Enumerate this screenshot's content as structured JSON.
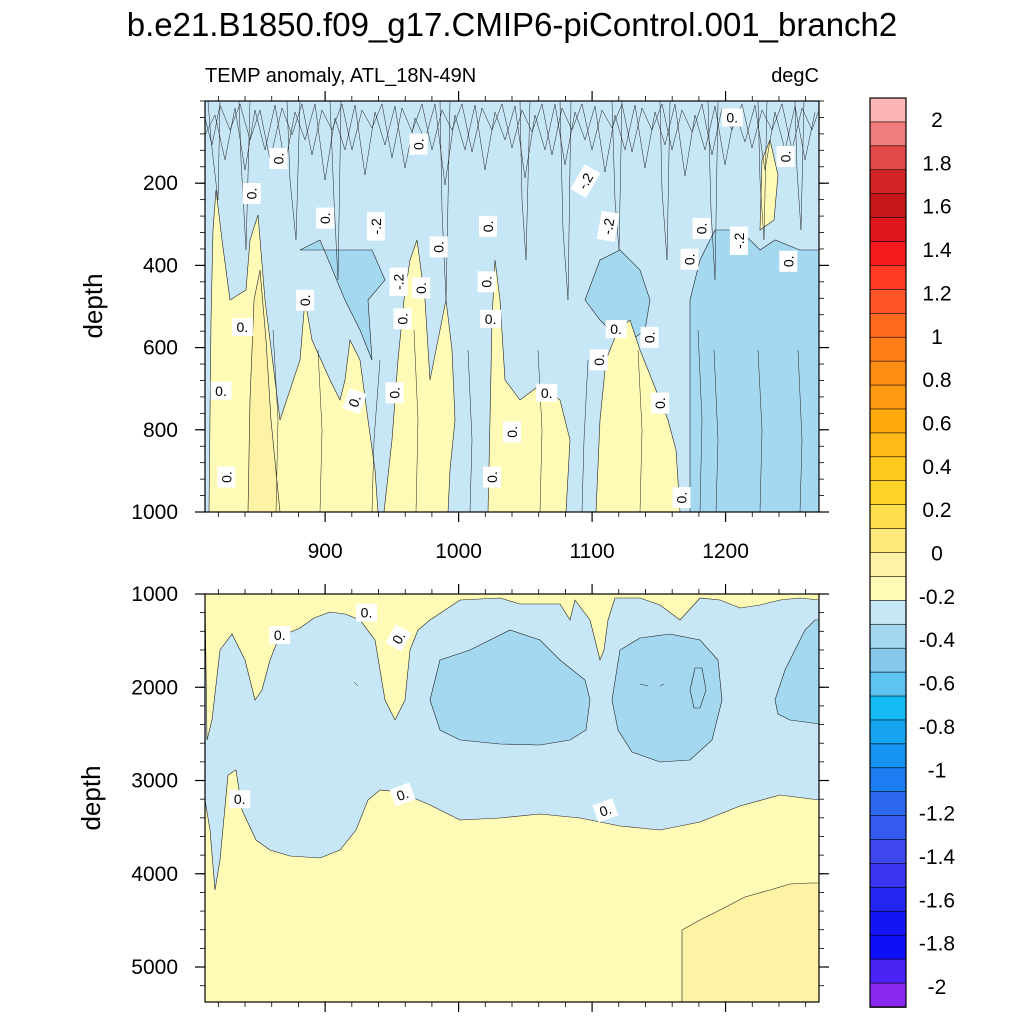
{
  "chart_data": {
    "type": "heatmap",
    "title": "b.e21.B1850.f09_g17.CMIP6-piControl.001_branch2",
    "panels": [
      {
        "name": "upper-ocean",
        "subtitle_left": "TEMP anomaly, ATL_18N-49N",
        "subtitle_right": "degC",
        "ylabel": "depth",
        "xlim": [
          810,
          1270
        ],
        "ylim": [
          0,
          1000
        ],
        "x_ticks": [
          "900",
          "1000",
          "1100",
          "1200"
        ],
        "y_ticks": [
          "200",
          "400",
          "600",
          "800",
          "1000"
        ],
        "contour_labels": [
          {
            "text": "0.",
            "x": 1205,
            "y": 40,
            "rot": 0
          },
          {
            "text": "0.",
            "x": 970,
            "y": 105,
            "rot": -90
          },
          {
            "text": "0.",
            "x": 865,
            "y": 140,
            "rot": -90
          },
          {
            "text": "0.",
            "x": 1245,
            "y": 135,
            "rot": -90
          },
          {
            "text": "-.2",
            "x": 1095,
            "y": 195,
            "rot": -60
          },
          {
            "text": "0.",
            "x": 845,
            "y": 225,
            "rot": -90
          },
          {
            "text": "0.",
            "x": 900,
            "y": 285,
            "rot": -90
          },
          {
            "text": "-.2",
            "x": 938,
            "y": 305,
            "rot": -90
          },
          {
            "text": "0.",
            "x": 1022,
            "y": 305,
            "rot": -90
          },
          {
            "text": "-.2",
            "x": 1112,
            "y": 305,
            "rot": -80
          },
          {
            "text": "0.",
            "x": 1182,
            "y": 310,
            "rot": -90
          },
          {
            "text": "-.2",
            "x": 1210,
            "y": 340,
            "rot": -90
          },
          {
            "text": "0.",
            "x": 985,
            "y": 355,
            "rot": -90
          },
          {
            "text": "0.",
            "x": 1173,
            "y": 385,
            "rot": -90
          },
          {
            "text": "0.",
            "x": 1247,
            "y": 390,
            "rot": -90
          },
          {
            "text": "-.2",
            "x": 955,
            "y": 440,
            "rot": -90
          },
          {
            "text": "0.",
            "x": 1021,
            "y": 440,
            "rot": -90
          },
          {
            "text": "0.",
            "x": 972,
            "y": 455,
            "rot": -90
          },
          {
            "text": "0.",
            "x": 885,
            "y": 485,
            "rot": -90
          },
          {
            "text": "0.",
            "x": 1024,
            "y": 530,
            "rot": 0
          },
          {
            "text": "0.",
            "x": 958,
            "y": 530,
            "rot": -90
          },
          {
            "text": "0.",
            "x": 838,
            "y": 550,
            "rot": 0
          },
          {
            "text": "0.",
            "x": 1118,
            "y": 555,
            "rot": 0
          },
          {
            "text": "0.",
            "x": 1143,
            "y": 575,
            "rot": -90
          },
          {
            "text": "0.",
            "x": 1105,
            "y": 630,
            "rot": -90
          },
          {
            "text": "0.",
            "x": 822,
            "y": 705,
            "rot": 0
          },
          {
            "text": "0.",
            "x": 952,
            "y": 710,
            "rot": -90
          },
          {
            "text": "0.",
            "x": 1066,
            "y": 710,
            "rot": 0
          },
          {
            "text": "0.",
            "x": 922,
            "y": 730,
            "rot": -70
          },
          {
            "text": "0.",
            "x": 1151,
            "y": 735,
            "rot": -90
          },
          {
            "text": "0.",
            "x": 1040,
            "y": 805,
            "rot": -90
          },
          {
            "text": "0.",
            "x": 826,
            "y": 915,
            "rot": -90
          },
          {
            "text": "0.",
            "x": 1025,
            "y": 915,
            "rot": -90
          },
          {
            "text": "0.",
            "x": 1167,
            "y": 965,
            "rot": -90
          }
        ]
      },
      {
        "name": "deep-ocean",
        "ylabel": "depth",
        "xlim": [
          810,
          1270
        ],
        "ylim": [
          1000,
          5375
        ],
        "y_ticks": [
          "1000",
          "2000",
          "3000",
          "4000",
          "5000"
        ],
        "contour_labels": [
          {
            "text": "0.",
            "x": 931,
            "y": 1200,
            "rot": 0
          },
          {
            "text": "0.",
            "x": 866,
            "y": 1440,
            "rot": 0
          },
          {
            "text": "0.",
            "x": 955,
            "y": 1470,
            "rot": -60
          },
          {
            "text": "0.",
            "x": 836,
            "y": 3200,
            "rot": 0
          },
          {
            "text": "0.",
            "x": 958,
            "y": 3150,
            "rot": -20
          },
          {
            "text": "0.",
            "x": 1110,
            "y": 3320,
            "rot": -20
          }
        ]
      }
    ],
    "colorbar": {
      "labels": [
        "2",
        "1.8",
        "1.6",
        "1.4",
        "1.2",
        "1",
        "0.8",
        "0.6",
        "0.4",
        "0.2",
        "0",
        "-0.2",
        "-0.4",
        "-0.6",
        "-0.8",
        "-1",
        "-1.2",
        "-1.4",
        "-1.6",
        "-1.8",
        "-2"
      ],
      "colors": [
        "#fbb5b5",
        "#f07c7c",
        "#e4494a",
        "#d22426",
        "#c8171b",
        "#e0171c",
        "#f51a1e",
        "#ff3a24",
        "#ff5526",
        "#ff6a1f",
        "#ff7d17",
        "#ff8d14",
        "#ff9b10",
        "#ffa90e",
        "#ffba18",
        "#ffc81f",
        "#ffd428",
        "#ffe04c",
        "#fde97a",
        "#fef3a5",
        "#fffbb6",
        "#c7e6f6",
        "#a3d8f0",
        "#86c9eb",
        "#5dc3f0",
        "#14bbf3",
        "#16a4f0",
        "#1793f1",
        "#1c7cf1",
        "#2c68f0",
        "#355af0",
        "#3f46ee",
        "#3a36ef",
        "#2525f0",
        "#1414f5",
        "#0e0ef7",
        "#4a22f3",
        "#8a28ef"
      ]
    }
  }
}
